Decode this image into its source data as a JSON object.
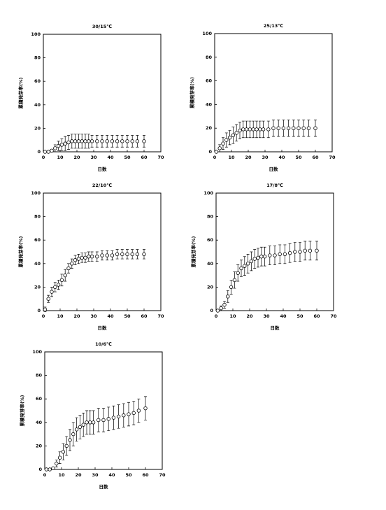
{
  "chart_data": [
    {
      "type": "scatter",
      "title": "30/15℃",
      "xlabel": "日数",
      "ylabel": "累積発芽率(%)",
      "color": "#000000",
      "x": [
        1,
        3,
        5,
        7,
        9,
        11,
        13,
        15,
        17,
        19,
        21,
        23,
        25,
        27,
        29,
        32,
        35,
        38,
        41,
        44,
        47,
        50,
        53,
        56,
        60
      ],
      "values": [
        0,
        0,
        1,
        3,
        5,
        6,
        7,
        8,
        9,
        9,
        9,
        9,
        9,
        9,
        9,
        9,
        9,
        9,
        9,
        9,
        9,
        9,
        9,
        9,
        9
      ],
      "errors": [
        0,
        0,
        1,
        3,
        4,
        5,
        6,
        6,
        6,
        6,
        6,
        6,
        6,
        6,
        5,
        5,
        5,
        5,
        5,
        5,
        5,
        5,
        5,
        5,
        5
      ],
      "xlim": [
        0,
        70
      ],
      "xticks": [
        0,
        10,
        20,
        30,
        40,
        50,
        60,
        70
      ],
      "ylim": [
        0,
        100
      ],
      "yticks": [
        0,
        20,
        40,
        60,
        80,
        100
      ]
    },
    {
      "type": "scatter",
      "title": "25/13℃",
      "xlabel": "日数",
      "ylabel": "累積発芽率(%)",
      "color": "#000000",
      "x": [
        1,
        3,
        5,
        7,
        9,
        11,
        13,
        15,
        17,
        19,
        21,
        23,
        25,
        27,
        29,
        32,
        35,
        38,
        41,
        44,
        47,
        50,
        53,
        56,
        60
      ],
      "values": [
        0,
        3,
        7,
        10,
        12,
        14,
        16,
        18,
        19,
        19,
        19,
        19,
        19,
        19,
        19,
        19,
        20,
        20,
        20,
        20,
        20,
        20,
        20,
        20,
        20
      ],
      "errors": [
        0,
        3,
        5,
        6,
        6,
        7,
        7,
        7,
        7,
        7,
        7,
        7,
        7,
        7,
        7,
        7,
        7,
        7,
        7,
        7,
        7,
        7,
        7,
        7,
        7
      ],
      "xlim": [
        0,
        70
      ],
      "xticks": [
        0,
        10,
        20,
        30,
        40,
        50,
        60,
        70
      ],
      "ylim": [
        0,
        100
      ],
      "yticks": [
        0,
        20,
        40,
        60,
        80,
        100
      ]
    },
    {
      "type": "scatter",
      "title": "22/10℃",
      "xlabel": "日数",
      "ylabel": "累積発芽率(%)",
      "color": "#000000",
      "x": [
        1,
        3,
        5,
        7,
        9,
        11,
        13,
        15,
        17,
        19,
        21,
        23,
        25,
        27,
        29,
        32,
        35,
        38,
        41,
        44,
        47,
        50,
        53,
        56,
        60
      ],
      "values": [
        1,
        10,
        16,
        20,
        22,
        26,
        30,
        36,
        40,
        43,
        44,
        45,
        45,
        46,
        46,
        46,
        47,
        47,
        47,
        48,
        48,
        48,
        48,
        48,
        48
      ],
      "errors": [
        2,
        3,
        4,
        4,
        4,
        5,
        5,
        4,
        4,
        4,
        4,
        4,
        4,
        4,
        4,
        4,
        4,
        4,
        4,
        4,
        4,
        4,
        4,
        4,
        4
      ],
      "xlim": [
        0,
        70
      ],
      "xticks": [
        0,
        10,
        20,
        30,
        40,
        50,
        60,
        70
      ],
      "ylim": [
        0,
        100
      ],
      "yticks": [
        0,
        20,
        40,
        60,
        80,
        100
      ]
    },
    {
      "type": "scatter",
      "title": "17/8℃",
      "xlabel": "日数",
      "ylabel": "累積発芽率(%)",
      "color": "#000000",
      "x": [
        1,
        3,
        5,
        7,
        9,
        11,
        13,
        15,
        17,
        19,
        21,
        23,
        25,
        27,
        29,
        32,
        35,
        38,
        41,
        44,
        47,
        50,
        53,
        56,
        60
      ],
      "values": [
        0,
        2,
        5,
        12,
        20,
        26,
        32,
        36,
        38,
        40,
        42,
        44,
        45,
        46,
        46,
        47,
        47,
        48,
        48,
        49,
        50,
        50,
        51,
        51,
        51
      ],
      "errors": [
        0,
        2,
        3,
        5,
        6,
        7,
        7,
        7,
        8,
        8,
        8,
        8,
        8,
        8,
        8,
        8,
        8,
        8,
        8,
        8,
        8,
        8,
        8,
        8,
        8
      ],
      "xlim": [
        0,
        70
      ],
      "xticks": [
        0,
        10,
        20,
        30,
        40,
        50,
        60,
        70
      ],
      "ylim": [
        0,
        100
      ],
      "yticks": [
        0,
        20,
        40,
        60,
        80,
        100
      ]
    },
    {
      "type": "scatter",
      "title": "10/6℃",
      "xlabel": "日数",
      "ylabel": "累積発芽率(%)",
      "color": "#000000",
      "x": [
        1,
        3,
        5,
        7,
        9,
        11,
        13,
        15,
        17,
        19,
        21,
        23,
        25,
        27,
        29,
        32,
        35,
        38,
        41,
        44,
        47,
        50,
        53,
        56,
        60
      ],
      "values": [
        0,
        0,
        1,
        5,
        10,
        15,
        20,
        25,
        30,
        34,
        36,
        38,
        40,
        40,
        40,
        42,
        42,
        43,
        44,
        45,
        46,
        47,
        48,
        50,
        52
      ],
      "errors": [
        0,
        0,
        1,
        3,
        5,
        7,
        8,
        9,
        10,
        10,
        10,
        10,
        10,
        10,
        10,
        10,
        10,
        10,
        10,
        10,
        10,
        10,
        10,
        10,
        10
      ],
      "xlim": [
        0,
        70
      ],
      "xticks": [
        0,
        10,
        20,
        30,
        40,
        50,
        60,
        70
      ],
      "ylim": [
        0,
        100
      ],
      "yticks": [
        0,
        20,
        40,
        60,
        80,
        100
      ]
    }
  ]
}
